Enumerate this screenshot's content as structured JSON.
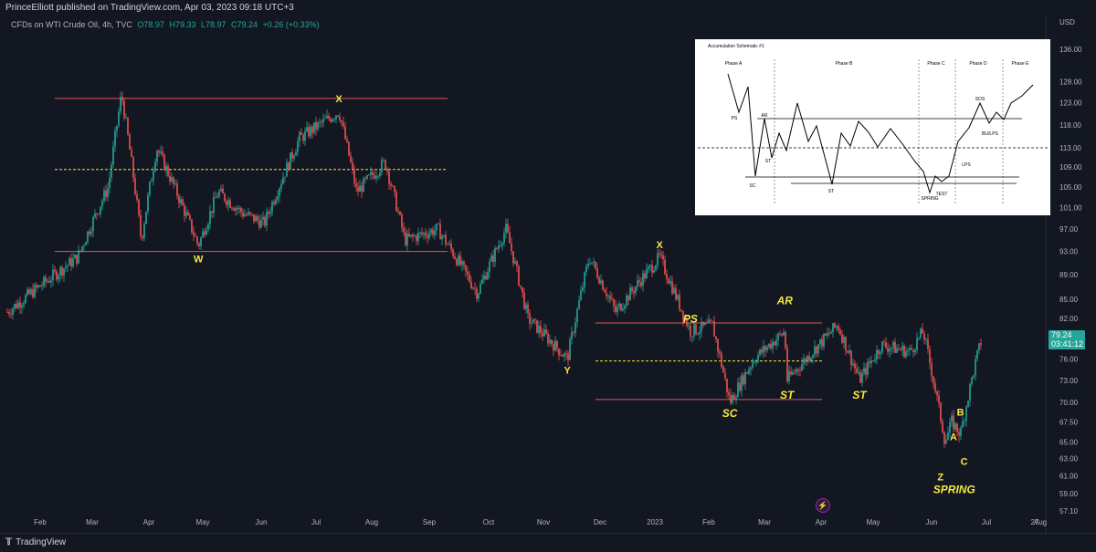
{
  "header": {
    "publisher_line": "PrinceElliott published on TradingView.com, Apr 03, 2023 09:18 UTC+3",
    "symbol": "CFDs on WTI Crude Oil, 4h, TVC",
    "ohlc": {
      "open": "O78.97",
      "high": "H79.33",
      "low": "L78.97",
      "close": "C79.24",
      "change": "+0.26 (+0.33%)"
    }
  },
  "price_axis": {
    "currency": "USD",
    "ticks": [
      "136.00",
      "128.00",
      "123.00",
      "118.00",
      "113.00",
      "109.00",
      "105.00",
      "101.00",
      "97.00",
      "93.00",
      "89.00",
      "85.00",
      "82.00",
      "79.00",
      "76.00",
      "73.00",
      "70.00",
      "67.50",
      "65.00",
      "63.00",
      "61.00",
      "59.00",
      "57.10"
    ],
    "last_price": "79.24",
    "countdown": "03:41:12"
  },
  "time_axis": {
    "ticks": [
      "Feb",
      "Mar",
      "Apr",
      "May",
      "Jun",
      "Jul",
      "Aug",
      "Sep",
      "Oct",
      "Nov",
      "Dec",
      "2023",
      "Feb",
      "Mar",
      "Apr",
      "May",
      "Jun",
      "Jul",
      "Aug",
      "27"
    ]
  },
  "annotations": {
    "wave_labels": [
      "X",
      "W",
      "X",
      "Y",
      "Z"
    ],
    "wyckoff_labels": [
      "PS",
      "AR",
      "SC",
      "ST",
      "ST",
      "SPRING"
    ],
    "abc_labels": [
      "A",
      "B",
      "C"
    ]
  },
  "schematic": {
    "title": "Accumulation Schematic #1",
    "phases": [
      "Phase A",
      "Phase B",
      "Phase C",
      "Phase D",
      "Phase E"
    ],
    "labels": [
      "PS",
      "AR",
      "SC",
      "ST",
      "ST",
      "SPRING",
      "TEST",
      "LPS",
      "SOS",
      "BU/LPS"
    ]
  },
  "footer": {
    "brand": "TradingView"
  },
  "colors": {
    "background": "#131722",
    "up": "#26a69a",
    "down": "#ef5350",
    "range_line": "#e0555a",
    "mid_line": "#f5e83b",
    "label_yellow": "#f5e83b"
  },
  "chart_data": {
    "type": "candlestick",
    "title": "CFDs on WTI Crude Oil, 4h, TVC",
    "ylabel": "USD",
    "yscale": "log",
    "ylim": [
      57.1,
      136
    ],
    "xlim": [
      "2022-01-14",
      "2023-05-01"
    ],
    "series": [
      {
        "name": "CFDs on WTI Crude Oil",
        "path_points": [
          [
            "2022-01-14",
            83
          ],
          [
            "2022-02-01",
            88
          ],
          [
            "2022-02-15",
            92
          ],
          [
            "2022-03-01",
            105
          ],
          [
            "2022-03-07",
            125
          ],
          [
            "2022-03-16",
            95
          ],
          [
            "2022-03-23",
            113
          ],
          [
            "2022-04-11",
            94
          ],
          [
            "2022-04-20",
            104
          ],
          [
            "2022-05-01",
            100
          ],
          [
            "2022-05-11",
            98
          ],
          [
            "2022-05-27",
            115
          ],
          [
            "2022-06-14",
            121
          ],
          [
            "2022-06-22",
            104
          ],
          [
            "2022-07-05",
            110
          ],
          [
            "2022-07-14",
            95
          ],
          [
            "2022-07-29",
            97
          ],
          [
            "2022-08-16",
            86
          ],
          [
            "2022-08-29",
            97
          ],
          [
            "2022-09-08",
            82
          ],
          [
            "2022-09-26",
            76
          ],
          [
            "2022-10-06",
            92
          ],
          [
            "2022-10-18",
            83
          ],
          [
            "2022-11-07",
            92
          ],
          [
            "2022-11-15",
            85
          ],
          [
            "2022-11-21",
            80
          ],
          [
            "2022-12-01",
            81
          ],
          [
            "2022-12-09",
            70
          ],
          [
            "2022-12-20",
            76
          ],
          [
            "2023-01-03",
            80
          ],
          [
            "2023-01-04",
            73
          ],
          [
            "2023-01-27",
            81
          ],
          [
            "2023-02-06",
            73
          ],
          [
            "2023-02-16",
            78
          ],
          [
            "2023-03-01",
            77
          ],
          [
            "2023-03-07",
            80
          ],
          [
            "2023-03-17",
            65
          ],
          [
            "2023-03-20",
            67.5
          ],
          [
            "2023-03-24",
            66
          ],
          [
            "2023-03-31",
            75.7
          ],
          [
            "2023-04-03",
            79.24
          ]
        ]
      }
    ],
    "horizontal_levels": [
      {
        "value": 124,
        "style": "solid",
        "color": "#e0555a"
      },
      {
        "value": 108.5,
        "style": "dashed",
        "color": "#f5e83b"
      },
      {
        "value": 93,
        "style": "solid",
        "color": "#e0555a"
      },
      {
        "value": 81.3,
        "style": "solid",
        "color": "#e0555a"
      },
      {
        "value": 75.7,
        "style": "dashed",
        "color": "#f5e83b"
      },
      {
        "value": 70.4,
        "style": "solid",
        "color": "#e0555a"
      }
    ],
    "annotations": [
      {
        "text": "X",
        "date": "2022-06-14",
        "value": 121
      },
      {
        "text": "W",
        "date": "2022-04-11",
        "value": 94
      },
      {
        "text": "X",
        "date": "2022-11-07",
        "value": 92
      },
      {
        "text": "Y",
        "date": "2022-09-26",
        "value": 76
      },
      {
        "text": "PS",
        "date": "2022-11-21",
        "value": 80
      },
      {
        "text": "AR",
        "date": "2023-01-03",
        "value": 80
      },
      {
        "text": "SC",
        "date": "2022-12-09",
        "value": 70
      },
      {
        "text": "ST",
        "date": "2023-01-04",
        "value": 73
      },
      {
        "text": "ST",
        "date": "2023-02-06",
        "value": 73
      },
      {
        "text": "B",
        "date": "2023-03-24",
        "value": 66
      },
      {
        "text": "A",
        "date": "2023-03-20",
        "value": 67.5
      },
      {
        "text": "C",
        "date": "2023-03-24",
        "value": 66
      },
      {
        "text": "Z",
        "date": "2023-03-17",
        "value": 65
      },
      {
        "text": "SPRING",
        "date": "2023-03-17",
        "value": 65
      }
    ]
  }
}
